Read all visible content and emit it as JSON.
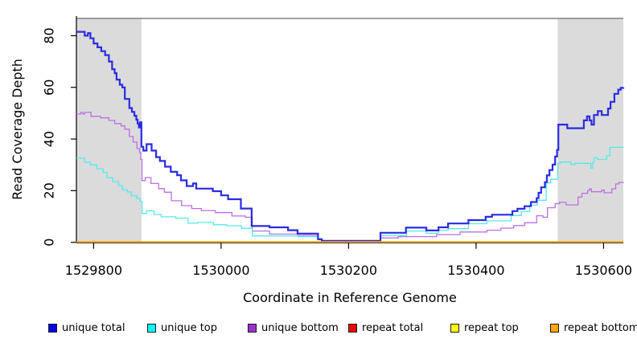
{
  "legend": {
    "items": [
      {
        "label": "unique total",
        "swatch_color": "#0000EE"
      },
      {
        "label": "unique top",
        "swatch_color": "#00FFFF"
      },
      {
        "label": "unique bottom",
        "swatch_color": "#9932CC"
      },
      {
        "label": "repeat total",
        "swatch_color": "#EE0000"
      },
      {
        "label": "repeat top",
        "swatch_color": "#FFFF00"
      },
      {
        "label": "repeat bottom",
        "swatch_color": "#FFA500"
      }
    ]
  },
  "chart_data": {
    "type": "line",
    "step": true,
    "title": "",
    "xlabel": "Coordinate in Reference Genome",
    "ylabel": "Read Coverage Depth",
    "xlim": [
      1529773,
      1530631
    ],
    "ylim": [
      0,
      87.6
    ],
    "x_ticks": [
      1529800,
      1530000,
      1530200,
      1530400,
      1530600
    ],
    "x_tick_labels": [
      "1529800",
      "1530000",
      "1530200",
      "1530400",
      "1530600"
    ],
    "y_ticks": [
      0,
      20,
      40,
      60,
      80
    ],
    "y_tick_labels": [
      "0",
      "20",
      "40",
      "60",
      "80"
    ],
    "grid": false,
    "legend_position": "bottom",
    "shaded_regions": [
      {
        "x0": 1529773,
        "x1": 1529875,
        "color": "#DBDBDB"
      },
      {
        "x0": 1530528,
        "x1": 1530631,
        "color": "#DBDBDB"
      }
    ],
    "top_rule": {
      "y": 86.7,
      "color": "#8C8C8C"
    },
    "series": [
      {
        "name": "repeat total",
        "color": "#EE0000",
        "line_width": 1,
        "points": [
          [
            1529773,
            0.2
          ],
          [
            1530631,
            0.2
          ]
        ]
      },
      {
        "name": "repeat top",
        "color": "#FFFF00",
        "line_width": 1,
        "points": [
          [
            1529773,
            0.2
          ],
          [
            1530631,
            0.2
          ]
        ]
      },
      {
        "name": "unique bottom",
        "color": "#BC6FE3",
        "line_width": 1.3,
        "points": [
          [
            1529773,
            49.7
          ],
          [
            1529780,
            50.3
          ],
          [
            1529783,
            49.7
          ],
          [
            1529786,
            50.3
          ],
          [
            1529796,
            48.8
          ],
          [
            1529811,
            48.2
          ],
          [
            1529824,
            47.2
          ],
          [
            1529833,
            46
          ],
          [
            1529843,
            45.1
          ],
          [
            1529849,
            43.8
          ],
          [
            1529856,
            41
          ],
          [
            1529862,
            38.8
          ],
          [
            1529868,
            36.3
          ],
          [
            1529872,
            34.8
          ],
          [
            1529874,
            32.1
          ],
          [
            1529876,
            23.9
          ],
          [
            1529881,
            25.1
          ],
          [
            1529890,
            22.8
          ],
          [
            1529902,
            20.8
          ],
          [
            1529911,
            19.4
          ],
          [
            1529922,
            16.1
          ],
          [
            1529938,
            14.2
          ],
          [
            1529954,
            13.1
          ],
          [
            1529969,
            12.3
          ],
          [
            1529991,
            11.5
          ],
          [
            1530017,
            10.2
          ],
          [
            1530038,
            9.7
          ],
          [
            1530049,
            4.4
          ],
          [
            1530076,
            3.2
          ],
          [
            1530120,
            2.7
          ],
          [
            1530152,
            1.0
          ],
          [
            1530158,
            0.5
          ],
          [
            1530250,
            1.7
          ],
          [
            1530278,
            2.2
          ],
          [
            1530338,
            3.0
          ],
          [
            1530375,
            4.0
          ],
          [
            1530417,
            4.7
          ],
          [
            1530439,
            5.5
          ],
          [
            1530459,
            6.5
          ],
          [
            1530476,
            7.6
          ],
          [
            1530495,
            10.3
          ],
          [
            1530505,
            9.7
          ],
          [
            1530512,
            13.4
          ],
          [
            1530524,
            15.0
          ],
          [
            1530531,
            15.5
          ],
          [
            1530541,
            14.5
          ],
          [
            1530560,
            17.5
          ],
          [
            1530566,
            19.0
          ],
          [
            1530575,
            20.0
          ],
          [
            1530578,
            20.7
          ],
          [
            1530581,
            19.6
          ],
          [
            1530597,
            20.2
          ],
          [
            1530601,
            19.2
          ],
          [
            1530613,
            20.7
          ],
          [
            1530619,
            22.6
          ],
          [
            1530624,
            23.2
          ],
          [
            1530631,
            23.3
          ]
        ]
      },
      {
        "name": "unique top",
        "color": "#55EAEA",
        "line_width": 1.3,
        "points": [
          [
            1529773,
            32.6
          ],
          [
            1529786,
            31
          ],
          [
            1529795,
            30
          ],
          [
            1529805,
            28.5
          ],
          [
            1529815,
            27
          ],
          [
            1529821,
            25
          ],
          [
            1529830,
            23.5
          ],
          [
            1529839,
            22
          ],
          [
            1529845,
            20.3
          ],
          [
            1529853,
            19.5
          ],
          [
            1529859,
            18
          ],
          [
            1529868,
            17
          ],
          [
            1529873,
            15.9
          ],
          [
            1529876,
            11.2
          ],
          [
            1529883,
            12.2
          ],
          [
            1529895,
            10.8
          ],
          [
            1529906,
            9.9
          ],
          [
            1529929,
            9.4
          ],
          [
            1529948,
            7.4
          ],
          [
            1529963,
            7.7
          ],
          [
            1529988,
            6.8
          ],
          [
            1530009,
            6.4
          ],
          [
            1530032,
            5.4
          ],
          [
            1530049,
            2.5
          ],
          [
            1530121,
            2.2
          ],
          [
            1530152,
            1.4
          ],
          [
            1530158,
            0.5
          ],
          [
            1530250,
            2.6
          ],
          [
            1530291,
            4.4
          ],
          [
            1530322,
            3.5
          ],
          [
            1530341,
            4.7
          ],
          [
            1530356,
            5.3
          ],
          [
            1530388,
            7.2
          ],
          [
            1530417,
            8.3
          ],
          [
            1530455,
            10.4
          ],
          [
            1530471,
            11.9
          ],
          [
            1530484,
            14.4
          ],
          [
            1530496,
            16.3
          ],
          [
            1530510,
            23.0
          ],
          [
            1530517,
            24.4
          ],
          [
            1530528,
            30.6
          ],
          [
            1530532,
            31.1
          ],
          [
            1530549,
            30.2
          ],
          [
            1530555,
            30.6
          ],
          [
            1530580,
            28.7
          ],
          [
            1530583,
            31.0
          ],
          [
            1530585,
            32.7
          ],
          [
            1530590,
            32.1
          ],
          [
            1530605,
            33.6
          ],
          [
            1530610,
            36.8
          ],
          [
            1530631,
            37.0
          ]
        ]
      },
      {
        "name": "unique total",
        "color": "#2B2BE2",
        "line_width": 2.2,
        "points": [
          [
            1529773,
            81.5
          ],
          [
            1529786,
            80
          ],
          [
            1529791,
            81
          ],
          [
            1529795,
            79
          ],
          [
            1529800,
            77
          ],
          [
            1529806,
            75.5
          ],
          [
            1529812,
            74
          ],
          [
            1529818,
            72.5
          ],
          [
            1529824,
            70
          ],
          [
            1529829,
            67
          ],
          [
            1529833,
            65.5
          ],
          [
            1529836,
            63
          ],
          [
            1529841,
            61
          ],
          [
            1529845,
            60
          ],
          [
            1529849,
            55.5
          ],
          [
            1529856,
            52
          ],
          [
            1529860,
            50.5
          ],
          [
            1529864,
            49
          ],
          [
            1529867,
            47.5
          ],
          [
            1529869,
            46
          ],
          [
            1529871,
            44.5
          ],
          [
            1529873,
            46.5
          ],
          [
            1529875,
            37
          ],
          [
            1529878,
            35.5
          ],
          [
            1529883,
            38
          ],
          [
            1529891,
            35.5
          ],
          [
            1529898,
            33
          ],
          [
            1529904,
            31.5
          ],
          [
            1529912,
            29.3
          ],
          [
            1529921,
            27.3
          ],
          [
            1529931,
            26
          ],
          [
            1529937,
            24
          ],
          [
            1529946,
            21.8
          ],
          [
            1529956,
            22.8
          ],
          [
            1529961,
            20.8
          ],
          [
            1529987,
            19.8
          ],
          [
            1530000,
            18.2
          ],
          [
            1530011,
            16.7
          ],
          [
            1530031,
            13.1
          ],
          [
            1530048,
            6.3
          ],
          [
            1530076,
            5.8
          ],
          [
            1530105,
            4.7
          ],
          [
            1530120,
            3.4
          ],
          [
            1530152,
            1.2
          ],
          [
            1530158,
            0.6
          ],
          [
            1530250,
            3.7
          ],
          [
            1530290,
            5.7
          ],
          [
            1530322,
            4.6
          ],
          [
            1530341,
            5.8
          ],
          [
            1530356,
            7.3
          ],
          [
            1530388,
            8.6
          ],
          [
            1530415,
            9.9
          ],
          [
            1530425,
            10.7
          ],
          [
            1530457,
            12.1
          ],
          [
            1530465,
            13.0
          ],
          [
            1530476,
            14.0
          ],
          [
            1530486,
            15.6
          ],
          [
            1530495,
            17.1
          ],
          [
            1530498,
            19.2
          ],
          [
            1530502,
            21.3
          ],
          [
            1530508,
            23.3
          ],
          [
            1530511,
            25.9
          ],
          [
            1530515,
            28.0
          ],
          [
            1530520,
            30.1
          ],
          [
            1530524,
            33.2
          ],
          [
            1530527,
            35.8
          ],
          [
            1530529,
            45.6
          ],
          [
            1530543,
            44.2
          ],
          [
            1530569,
            47.2
          ],
          [
            1530574,
            48.8
          ],
          [
            1530578,
            47.2
          ],
          [
            1530581,
            45.6
          ],
          [
            1530585,
            49.3
          ],
          [
            1530591,
            50.8
          ],
          [
            1530597,
            49.3
          ],
          [
            1530607,
            51.8
          ],
          [
            1530611,
            54.4
          ],
          [
            1530617,
            57.5
          ],
          [
            1530623,
            59.1
          ],
          [
            1530627,
            59.8
          ],
          [
            1530631,
            60.0
          ]
        ]
      },
      {
        "name": "repeat bottom",
        "color": "#FFA500",
        "line_width": 1.8,
        "points": [
          [
            1529773,
            0.2
          ],
          [
            1530631,
            0.2
          ]
        ]
      }
    ]
  }
}
